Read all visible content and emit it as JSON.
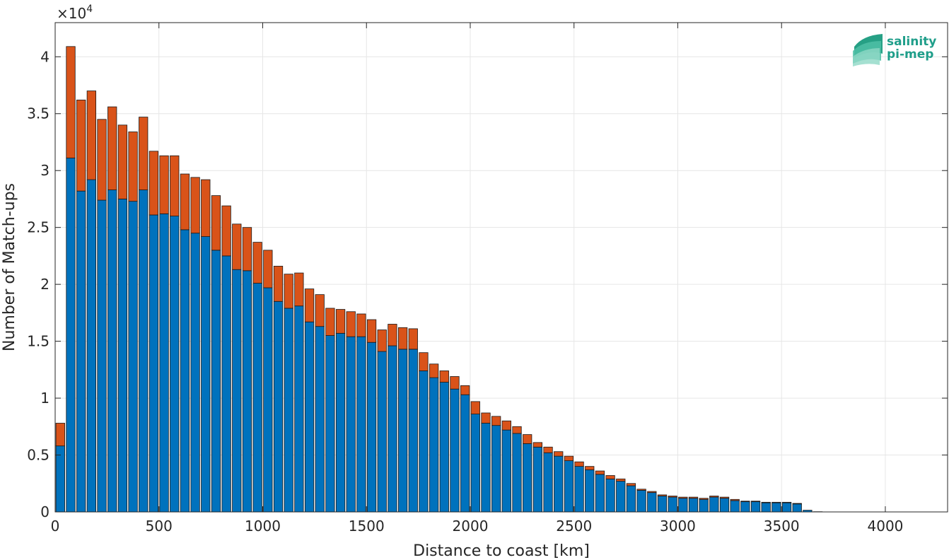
{
  "chart_data": {
    "type": "bar",
    "stacked": true,
    "xlabel": "Distance to coast [km]",
    "ylabel": "Number of Match-ups",
    "y_exponent_label": "×10",
    "y_exponent_power": "4",
    "xlim": [
      0,
      4300
    ],
    "ylim": [
      0,
      43000
    ],
    "xticks": [
      0,
      500,
      1000,
      1500,
      2000,
      2500,
      3000,
      3500,
      4000
    ],
    "xtick_labels": [
      "0",
      "500",
      "1000",
      "1500",
      "2000",
      "2500",
      "3000",
      "3500",
      "4000"
    ],
    "yticks": [
      0,
      5000,
      10000,
      15000,
      20000,
      25000,
      30000,
      35000,
      40000
    ],
    "ytick_labels": [
      "0",
      "0.5",
      "1",
      "1.5",
      "2",
      "2.5",
      "3",
      "3.5",
      "4"
    ],
    "grid": true,
    "bin_width_km": 50,
    "bar_width_fraction": 0.85,
    "x": [
      25,
      75,
      125,
      175,
      225,
      275,
      325,
      375,
      425,
      475,
      525,
      575,
      625,
      675,
      725,
      775,
      825,
      875,
      925,
      975,
      1025,
      1075,
      1125,
      1175,
      1225,
      1275,
      1325,
      1375,
      1425,
      1475,
      1525,
      1575,
      1625,
      1675,
      1725,
      1775,
      1825,
      1875,
      1925,
      1975,
      2025,
      2075,
      2125,
      2175,
      2225,
      2275,
      2325,
      2375,
      2425,
      2475,
      2525,
      2575,
      2625,
      2675,
      2725,
      2775,
      2825,
      2875,
      2925,
      2975,
      3025,
      3075,
      3125,
      3175,
      3225,
      3275,
      3325,
      3375,
      3425,
      3475,
      3525,
      3575,
      3625,
      3675
    ],
    "series": [
      {
        "color": "#0072BD",
        "values": [
          5800,
          31100,
          28200,
          29200,
          27400,
          28300,
          27500,
          27300,
          28300,
          26100,
          26200,
          26000,
          24800,
          24500,
          24200,
          23000,
          22500,
          21300,
          21200,
          20100,
          19700,
          18500,
          17900,
          18100,
          16700,
          16300,
          15500,
          15700,
          15400,
          15400,
          14900,
          14100,
          14600,
          14300,
          14300,
          12400,
          11800,
          11400,
          10800,
          10300,
          8600,
          7800,
          7600,
          7200,
          6900,
          6000,
          5700,
          5200,
          4900,
          4500,
          4000,
          3700,
          3300,
          2900,
          2700,
          2300,
          1900,
          1700,
          1400,
          1300,
          1200,
          1200,
          1100,
          1300,
          1200,
          1000,
          900,
          900,
          800,
          800,
          800,
          700,
          150,
          20
        ]
      },
      {
        "color": "#D95319",
        "values": [
          2000,
          9800,
          8000,
          7800,
          7100,
          7300,
          6500,
          6100,
          6400,
          5600,
          5100,
          5300,
          4900,
          4900,
          5000,
          4800,
          4400,
          4000,
          3800,
          3600,
          3300,
          3100,
          3000,
          2900,
          2900,
          2800,
          2400,
          2100,
          2200,
          2000,
          2000,
          1900,
          1900,
          1900,
          1800,
          1600,
          1200,
          1000,
          1100,
          800,
          1100,
          900,
          800,
          800,
          600,
          800,
          400,
          500,
          400,
          400,
          400,
          300,
          300,
          300,
          200,
          200,
          100,
          100,
          100,
          100,
          100,
          100,
          100,
          100,
          100,
          100,
          50,
          50,
          50,
          50,
          50,
          50,
          0,
          0
        ]
      }
    ]
  },
  "logo": {
    "line1": "salinity",
    "line2": "pi-mep",
    "color": "#1f9e8a"
  }
}
